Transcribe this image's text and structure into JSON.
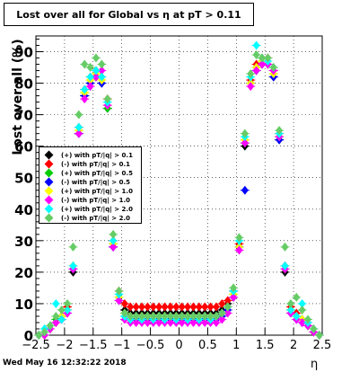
{
  "title": "Lost over all for Global vs   η at pT > 0.11",
  "ylabel": "Lost over all (%)",
  "xlabel": "η",
  "date": "Wed May 16 12:32:22 2018",
  "chart_data": {
    "type": "scatter",
    "title": "Lost over all for Global vs   η at pT > 0.11",
    "xlabel": "η",
    "ylabel": "Lost over all (%)",
    "xlim": [
      -2.5,
      2.5
    ],
    "ylim": [
      0,
      95
    ],
    "xticks": [
      -2.5,
      -2,
      -1.5,
      -1,
      -0.5,
      0,
      0.5,
      1,
      1.5,
      2,
      2.5
    ],
    "xtick_labels": [
      "−2.5",
      "−2",
      "−1.5",
      "−1",
      "−0.5",
      "0",
      "0.5",
      "1",
      "1.5",
      "2",
      "2.5"
    ],
    "yticks": [
      0,
      10,
      20,
      30,
      40,
      50,
      60,
      70,
      80,
      90
    ],
    "grid": true,
    "legend_position": "middle-left",
    "x": [
      -2.45,
      -2.35,
      -2.25,
      -2.15,
      -2.05,
      -1.95,
      -1.85,
      -1.75,
      -1.65,
      -1.55,
      -1.45,
      -1.35,
      -1.25,
      -1.15,
      -1.05,
      -0.95,
      -0.85,
      -0.75,
      -0.65,
      -0.55,
      -0.45,
      -0.35,
      -0.25,
      -0.15,
      -0.05,
      0.05,
      0.15,
      0.25,
      0.35,
      0.45,
      0.55,
      0.65,
      0.75,
      0.85,
      0.95,
      1.05,
      1.15,
      1.25,
      1.35,
      1.45,
      1.55,
      1.65,
      1.75,
      1.85,
      1.95,
      2.05,
      2.15,
      2.25,
      2.35,
      2.45
    ],
    "series": [
      {
        "name": "(+) with pT/|q| > 0.1",
        "color": "#000000",
        "values": [
          0,
          0,
          2,
          4,
          6,
          8,
          20,
          64,
          76,
          80,
          82,
          80,
          72,
          28,
          12,
          8,
          7,
          7,
          7,
          7,
          7,
          7,
          7,
          7,
          7,
          7,
          7,
          7,
          7,
          7,
          7,
          7,
          8,
          10,
          14,
          28,
          60,
          80,
          84,
          86,
          86,
          82,
          62,
          20,
          8,
          6,
          5,
          3,
          1,
          0
        ]
      },
      {
        "name": "(-) with pT/|q| > 0.1",
        "color": "#ff0000",
        "values": [
          0,
          0,
          2,
          4,
          6,
          9,
          22,
          66,
          78,
          82,
          84,
          82,
          75,
          30,
          14,
          10,
          9,
          9,
          9,
          9,
          9,
          9,
          9,
          9,
          9,
          9,
          9,
          9,
          9,
          9,
          9,
          9,
          10,
          11,
          14,
          29,
          62,
          81,
          86,
          88,
          88,
          84,
          64,
          22,
          9,
          7,
          5,
          3,
          1,
          0
        ]
      },
      {
        "name": "(+) with pT/|q| > 0.5",
        "color": "#00cc00",
        "values": [
          0,
          0,
          3,
          5,
          6,
          8,
          21,
          65,
          77,
          81,
          83,
          81,
          72,
          29,
          12,
          7,
          6,
          6,
          6,
          6,
          6,
          6,
          6,
          6,
          6,
          6,
          6,
          6,
          6,
          6,
          6,
          6,
          7,
          9,
          13,
          28,
          61,
          80,
          85,
          87,
          86,
          83,
          63,
          21,
          8,
          6,
          5,
          3,
          1,
          0
        ]
      },
      {
        "name": "(-) with pT/|q| > 0.5",
        "color": "#0000ff",
        "values": [
          0,
          0,
          2,
          4,
          5,
          7,
          21,
          64,
          76,
          80,
          82,
          80,
          46,
          28,
          11,
          6,
          5,
          5,
          5,
          5,
          5,
          5,
          5,
          5,
          5,
          5,
          5,
          5,
          5,
          5,
          5,
          5,
          6,
          8,
          12,
          28,
          46,
          80,
          84,
          86,
          86,
          82,
          62,
          21,
          7,
          5,
          4,
          3,
          1,
          0
        ]
      },
      {
        "name": "(+) with pT/|q| > 1.0",
        "color": "#ffff00",
        "values": [
          0,
          0,
          2,
          4,
          6,
          8,
          22,
          65,
          77,
          81,
          83,
          81,
          73,
          29,
          12,
          7,
          6,
          6,
          6,
          6,
          6,
          6,
          6,
          6,
          6,
          6,
          6,
          6,
          6,
          6,
          6,
          6,
          7,
          9,
          13,
          28,
          62,
          80,
          85,
          87,
          86,
          83,
          63,
          21,
          8,
          6,
          5,
          3,
          1,
          0
        ]
      },
      {
        "name": "(-) with pT/|q| > 1.0",
        "color": "#ff00ff",
        "values": [
          0,
          0,
          2,
          4,
          5,
          7,
          21,
          64,
          75,
          79,
          82,
          84,
          73,
          28,
          11,
          5,
          4,
          4,
          4,
          4,
          4,
          4,
          4,
          4,
          4,
          4,
          4,
          4,
          4,
          4,
          4,
          4,
          5,
          7,
          12,
          27,
          61,
          79,
          84,
          86,
          86,
          84,
          63,
          21,
          7,
          5,
          4,
          3,
          1,
          0
        ]
      },
      {
        "name": "(+) with pT/|q| > 2.0",
        "color": "#00ffff",
        "values": [
          0,
          2,
          3,
          10,
          5,
          8,
          22,
          66,
          78,
          82,
          84,
          82,
          74,
          30,
          13,
          6,
          5,
          6,
          5,
          6,
          5,
          6,
          5,
          6,
          5,
          6,
          5,
          6,
          5,
          6,
          5,
          6,
          7,
          9,
          14,
          30,
          63,
          82,
          92,
          88,
          87,
          85,
          64,
          22,
          8,
          6,
          10,
          4,
          2,
          0
        ]
      },
      {
        "name": "(-) with pT/|q| > 2.0",
        "color": "#66cc66",
        "values": [
          0,
          1,
          3,
          6,
          8,
          10,
          28,
          70,
          86,
          85,
          88,
          86,
          75,
          32,
          14,
          7,
          6,
          6,
          6,
          6,
          6,
          6,
          6,
          6,
          6,
          6,
          6,
          6,
          6,
          6,
          6,
          6,
          7,
          9,
          15,
          31,
          64,
          83,
          89,
          88,
          88,
          85,
          65,
          28,
          10,
          12,
          8,
          5,
          2,
          0
        ]
      }
    ]
  }
}
